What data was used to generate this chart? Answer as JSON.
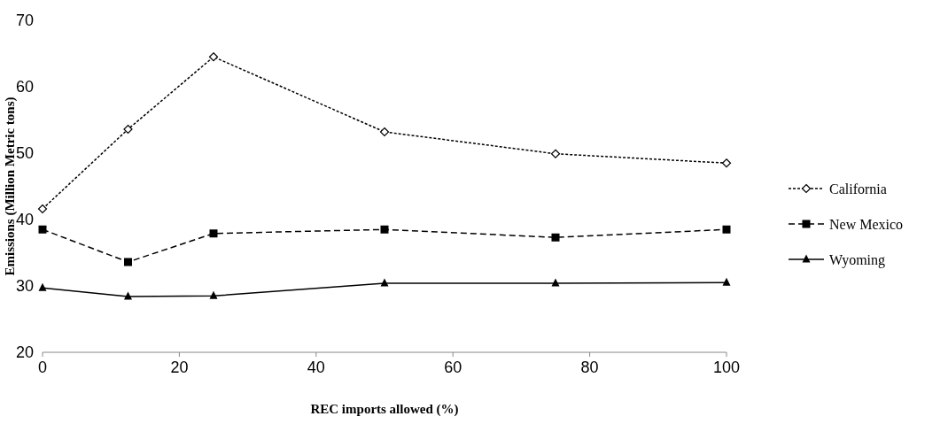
{
  "chart_data": {
    "type": "line",
    "xlabel": "REC imports allowed (%)",
    "ylabel": "Emissions (Million Metric tons)",
    "x": [
      0,
      12.5,
      25,
      50,
      75,
      100
    ],
    "series": [
      {
        "name": "California",
        "color": "#000000",
        "marker": "diamond",
        "line_style": "dotted",
        "values": [
          41.6,
          53.6,
          64.5,
          53.2,
          49.9,
          48.5
        ]
      },
      {
        "name": "New Mexico",
        "color": "#000000",
        "marker": "square",
        "line_style": "dashed",
        "values": [
          38.5,
          33.6,
          37.9,
          38.5,
          37.3,
          38.5
        ]
      },
      {
        "name": "Wyoming",
        "color": "#000000",
        "marker": "triangle",
        "line_style": "solid",
        "values": [
          29.7,
          28.4,
          28.5,
          30.4,
          30.4,
          30.5
        ]
      }
    ],
    "xlim": [
      0,
      100
    ],
    "xticks": [
      0,
      20,
      40,
      60,
      80,
      100
    ],
    "ylim": [
      20,
      70
    ],
    "yticks": [
      20,
      30,
      40,
      50,
      60,
      70
    ],
    "grid": false,
    "legend": "right"
  }
}
